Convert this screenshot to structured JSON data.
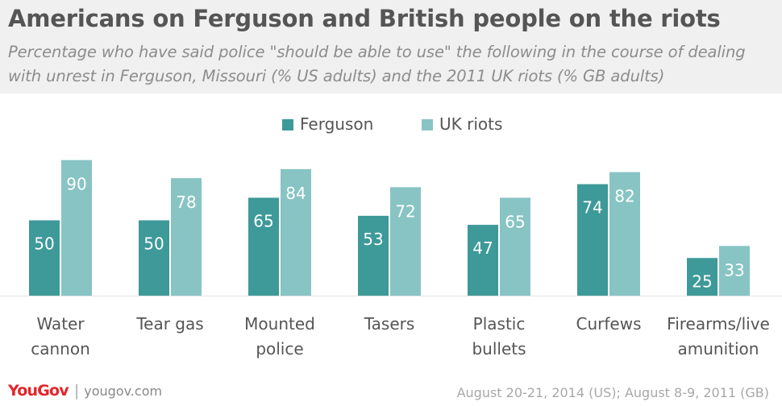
{
  "title": "Americans on Ferguson and British people on the riots",
  "subtitle": "Percentage who have said police \"should be able to use\" the following in the course of dealing with unrest in Ferguson, Missouri (% US adults) and the 2011 UK riots (% GB adults)",
  "colors": {
    "ferguson": "#3e9999",
    "uk_riots": "#88c4c4",
    "label_text": "#ffffff",
    "axis_text": "#555555",
    "baseline": "#e3e3e3"
  },
  "chart_data": {
    "type": "bar",
    "categories": [
      [
        "Water",
        "cannon"
      ],
      [
        "Tear gas"
      ],
      [
        "Mounted",
        "police"
      ],
      [
        "Tasers"
      ],
      [
        "Plastic",
        "bullets"
      ],
      [
        "Curfews"
      ],
      [
        "Firearms/live",
        "amunition"
      ]
    ],
    "series": [
      {
        "name": "Ferguson",
        "values": [
          50,
          50,
          65,
          53,
          47,
          74,
          25
        ]
      },
      {
        "name": "UK riots",
        "values": [
          90,
          78,
          84,
          72,
          65,
          82,
          33
        ]
      }
    ],
    "ylim": [
      0,
      100
    ],
    "legend_position": "top-center",
    "grid": false,
    "data_labels": true
  },
  "footer": {
    "logo": "YouGov",
    "url": "yougov.com",
    "source": "August 20-21, 2014 (US); August 8-9, 2011 (GB)"
  }
}
